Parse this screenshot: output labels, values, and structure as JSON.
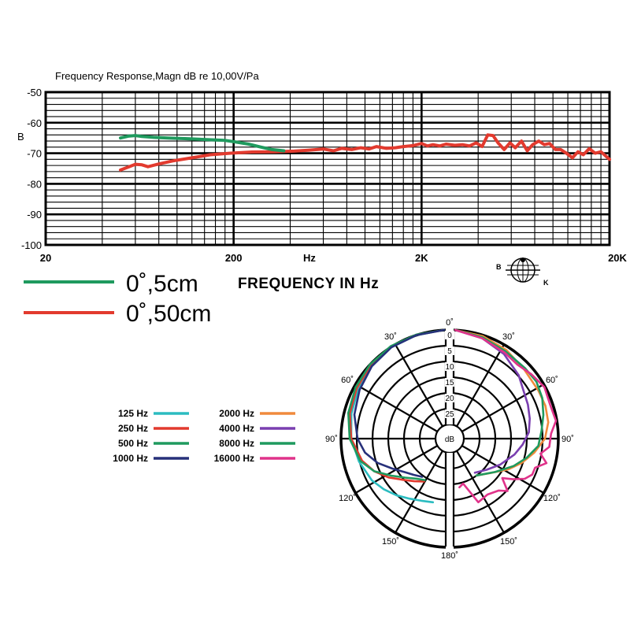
{
  "chart_data": [
    {
      "type": "line",
      "title": "Frequency Response,Magn dB re 10,00V/Pa",
      "ylabel": "B",
      "xlabel": "FREQUENCY IN Hz",
      "x_unit_label": "Hz",
      "x_scale": "log",
      "xlim": [
        20,
        20000
      ],
      "ylim": [
        -100,
        -50
      ],
      "x_ticks": [
        {
          "value": 20,
          "label": "20"
        },
        {
          "value": 200,
          "label": "200"
        },
        {
          "value": 2000,
          "label": "2K"
        },
        {
          "value": 20000,
          "label": "20K"
        }
      ],
      "y_ticks": [
        {
          "value": -50,
          "label": "-50"
        },
        {
          "value": -60,
          "label": "-60"
        },
        {
          "value": -70,
          "label": "-70"
        },
        {
          "value": -80,
          "label": "-80"
        },
        {
          "value": -90,
          "label": "-90"
        },
        {
          "value": -100,
          "label": "-100"
        }
      ],
      "grid": true,
      "series": [
        {
          "name": "0˚,5cm",
          "color": "#1f9a5e",
          "points": [
            [
              50,
              -65
            ],
            [
              55,
              -64.4
            ],
            [
              60,
              -64.2
            ],
            [
              65,
              -64.5
            ],
            [
              75,
              -64.8
            ],
            [
              90,
              -65
            ],
            [
              110,
              -65.2
            ],
            [
              140,
              -65.5
            ],
            [
              180,
              -65.8
            ],
            [
              200,
              -66.2
            ],
            [
              240,
              -67
            ],
            [
              280,
              -68
            ],
            [
              320,
              -68.8
            ],
            [
              370,
              -69.2
            ]
          ]
        },
        {
          "name": "0˚,50cm",
          "color": "#e23a2e",
          "points": [
            [
              50,
              -75.5
            ],
            [
              55,
              -74.5
            ],
            [
              60,
              -73.6
            ],
            [
              65,
              -73.8
            ],
            [
              70,
              -74.4
            ],
            [
              80,
              -73.5
            ],
            [
              95,
              -72.5
            ],
            [
              120,
              -71.5
            ],
            [
              150,
              -70.5
            ],
            [
              190,
              -70
            ],
            [
              250,
              -69.6
            ],
            [
              330,
              -69.5
            ],
            [
              420,
              -69.3
            ],
            [
              500,
              -69
            ],
            [
              600,
              -68.6
            ],
            [
              680,
              -69.2
            ],
            [
              750,
              -68.4
            ],
            [
              850,
              -68.8
            ],
            [
              950,
              -68.2
            ],
            [
              1050,
              -68.6
            ],
            [
              1150,
              -67.8
            ],
            [
              1300,
              -68.4
            ],
            [
              1450,
              -68.2
            ],
            [
              1600,
              -67.8
            ],
            [
              1800,
              -67.5
            ],
            [
              2000,
              -66.8
            ],
            [
              2150,
              -67.6
            ],
            [
              2300,
              -67.2
            ],
            [
              2500,
              -67.6
            ],
            [
              2700,
              -67
            ],
            [
              3000,
              -67.4
            ],
            [
              3300,
              -67.2
            ],
            [
              3600,
              -67.6
            ],
            [
              3900,
              -66.6
            ],
            [
              4200,
              -67.8
            ],
            [
              4500,
              -64
            ],
            [
              4800,
              -64.2
            ],
            [
              5100,
              -66.6
            ],
            [
              5500,
              -68.8
            ],
            [
              5900,
              -66.6
            ],
            [
              6300,
              -68.2
            ],
            [
              6800,
              -66
            ],
            [
              7300,
              -69.2
            ],
            [
              7800,
              -67.2
            ],
            [
              8400,
              -66
            ],
            [
              9000,
              -67.2
            ],
            [
              9600,
              -66.8
            ],
            [
              10300,
              -68.8
            ],
            [
              11000,
              -68.8
            ],
            [
              11800,
              -70
            ],
            [
              12700,
              -71.5
            ],
            [
              13600,
              -69.5
            ],
            [
              14500,
              -70.5
            ],
            [
              15600,
              -68.5
            ],
            [
              16800,
              -70
            ],
            [
              18000,
              -69.5
            ],
            [
              20000,
              -72
            ]
          ]
        }
      ]
    },
    {
      "type": "polar",
      "angle_labels": [
        {
          "angle": 0,
          "label": "0˚"
        },
        {
          "angle": 30,
          "label": "30˚"
        },
        {
          "angle": 60,
          "label": "60˚"
        },
        {
          "angle": 90,
          "label": "90˚"
        },
        {
          "angle": 120,
          "label": "120˚"
        },
        {
          "angle": 150,
          "label": "150˚"
        },
        {
          "angle": 180,
          "label": "180˚"
        },
        {
          "angle": -30,
          "label": "30˚"
        },
        {
          "angle": -60,
          "label": "60˚"
        },
        {
          "angle": -90,
          "label": "90˚"
        },
        {
          "angle": -120,
          "label": "120˚"
        },
        {
          "angle": -150,
          "label": "150˚"
        }
      ],
      "radial_labels": [
        {
          "value": 0,
          "label": "0"
        },
        {
          "value": 5,
          "label": "5"
        },
        {
          "value": 10,
          "label": "10"
        },
        {
          "value": 15,
          "label": "15"
        },
        {
          "value": 20,
          "label": "20"
        },
        {
          "value": 25,
          "label": "25"
        }
      ],
      "radial_unit": "dB",
      "radial_max_db": 30,
      "series": [
        {
          "name": "125 Hz",
          "color": "#2bbcc0",
          "side": "left",
          "points": [
            [
              0,
              0
            ],
            [
              15,
              0.5
            ],
            [
              30,
              1
            ],
            [
              45,
              2
            ],
            [
              60,
              3
            ],
            [
              75,
              4
            ],
            [
              90,
              5
            ],
            [
              105,
              6.5
            ],
            [
              120,
              8
            ],
            [
              130,
              9.5
            ],
            [
              140,
              11
            ],
            [
              150,
              12.5
            ],
            [
              160,
              13.5
            ],
            [
              170,
              14
            ]
          ]
        },
        {
          "name": "250 Hz",
          "color": "#e23a2e",
          "side": "left",
          "points": [
            [
              0,
              0
            ],
            [
              15,
              0.4
            ],
            [
              30,
              0.8
            ],
            [
              45,
              1.5
            ],
            [
              60,
              2.5
            ],
            [
              75,
              3.5
            ],
            [
              90,
              5
            ],
            [
              105,
              7.5
            ],
            [
              115,
              10
            ],
            [
              125,
              13
            ],
            [
              135,
              16
            ],
            [
              145,
              18
            ],
            [
              155,
              19.5
            ]
          ]
        },
        {
          "name": "500 Hz",
          "color": "#1f9a5e",
          "side": "left",
          "points": [
            [
              0,
              0
            ],
            [
              15,
              0.3
            ],
            [
              30,
              0.6
            ],
            [
              45,
              1.2
            ],
            [
              60,
              2
            ],
            [
              75,
              3
            ],
            [
              90,
              4.5
            ],
            [
              105,
              7
            ],
            [
              115,
              10
            ],
            [
              125,
              14
            ],
            [
              135,
              17
            ],
            [
              145,
              19
            ],
            [
              155,
              20
            ]
          ]
        },
        {
          "name": "1000 Hz",
          "color": "#27307a",
          "side": "left",
          "points": [
            [
              0,
              0
            ],
            [
              15,
              0.5
            ],
            [
              30,
              1
            ],
            [
              45,
              2
            ],
            [
              60,
              3.5
            ],
            [
              75,
              5
            ],
            [
              90,
              7
            ],
            [
              100,
              9
            ],
            [
              110,
              12
            ],
            [
              120,
              15.5
            ],
            [
              130,
              18
            ],
            [
              140,
              19.5
            ],
            [
              150,
              20.5
            ]
          ]
        },
        {
          "name": "2000 Hz",
          "color": "#f08a3c",
          "side": "right",
          "points": [
            [
              0,
              0
            ],
            [
              15,
              0.8
            ],
            [
              30,
              2
            ],
            [
              45,
              3.5
            ],
            [
              60,
              4
            ],
            [
              70,
              4
            ],
            [
              80,
              4.5
            ],
            [
              90,
              6
            ],
            [
              100,
              9
            ],
            [
              110,
              12
            ],
            [
              120,
              15
            ],
            [
              135,
              19
            ],
            [
              150,
              21
            ]
          ]
        },
        {
          "name": "4000 Hz",
          "color": "#7a3fb0",
          "side": "right",
          "points": [
            [
              0,
              0
            ],
            [
              15,
              1.5
            ],
            [
              30,
              3.5
            ],
            [
              45,
              6
            ],
            [
              55,
              8
            ],
            [
              65,
              9
            ],
            [
              75,
              10
            ],
            [
              85,
              11
            ],
            [
              95,
              13
            ],
            [
              105,
              15
            ],
            [
              120,
              18
            ],
            [
              135,
              20.5
            ],
            [
              150,
              22
            ]
          ]
        },
        {
          "name": "8000 Hz",
          "color": "#1f9a5e",
          "side": "right",
          "points": [
            [
              0,
              0
            ],
            [
              15,
              1.2
            ],
            [
              30,
              2.5
            ],
            [
              45,
              3
            ],
            [
              55,
              3
            ],
            [
              65,
              4
            ],
            [
              75,
              5.5
            ],
            [
              85,
              7
            ],
            [
              95,
              8
            ],
            [
              105,
              11
            ],
            [
              115,
              14
            ],
            [
              130,
              18
            ],
            [
              150,
              21
            ]
          ]
        },
        {
          "name": "16000 Hz",
          "color": "#e0338a",
          "side": "right",
          "points": [
            [
              0,
              0
            ],
            [
              15,
              1.5
            ],
            [
              30,
              3
            ],
            [
              40,
              3.8
            ],
            [
              50,
              2.8
            ],
            [
              60,
              1.8
            ],
            [
              70,
              2.5
            ],
            [
              80,
              2
            ],
            [
              87,
              4
            ],
            [
              95,
              4.5
            ],
            [
              100,
              7
            ],
            [
              105,
              4.5
            ],
            [
              110,
              7.5
            ],
            [
              115,
              7.5
            ],
            [
              120,
              9
            ],
            [
              125,
              12
            ],
            [
              130,
              15
            ],
            [
              135,
              11
            ],
            [
              140,
              13
            ],
            [
              150,
              14
            ],
            [
              160,
              13
            ],
            [
              170,
              20
            ],
            [
              175,
              19
            ]
          ]
        }
      ]
    }
  ],
  "logo": {
    "left_letter": "B",
    "right_letter": "K"
  }
}
